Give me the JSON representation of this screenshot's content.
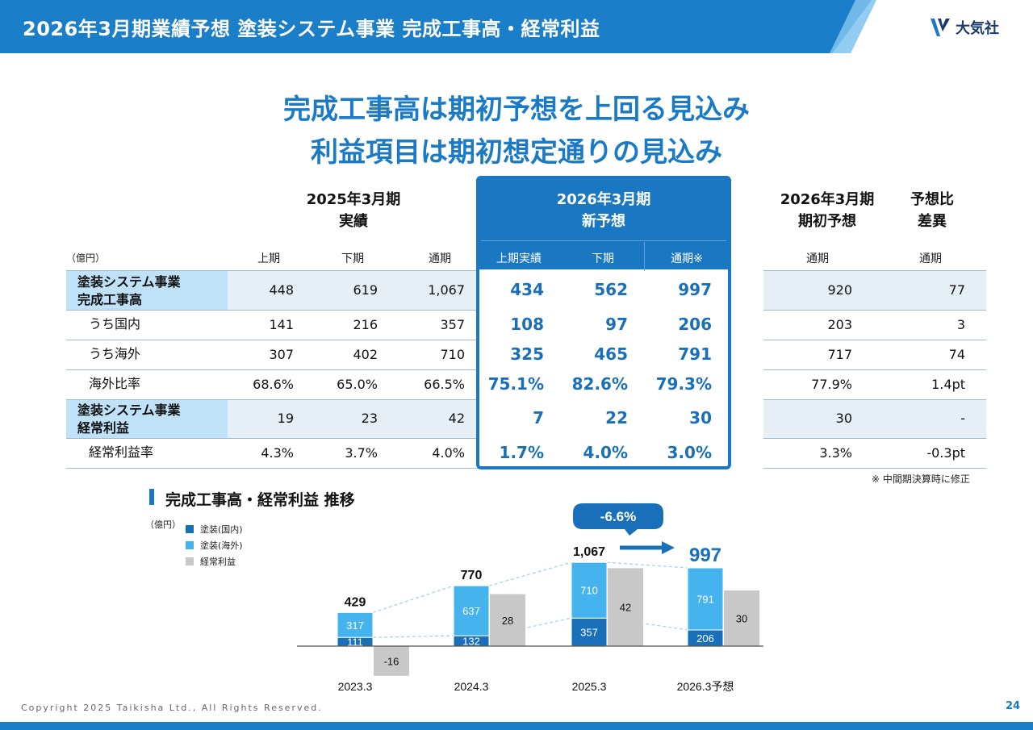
{
  "header": {
    "title": "2026年3月期業績予想 塗装システム事業 完成工事高・経常利益",
    "logo_text": "大気社"
  },
  "headline": {
    "line1": "完成工事高は期初予想を上回る見込み",
    "line2": "利益項目は期初想定通りの見込み"
  },
  "table": {
    "unit": "（億円）",
    "groups": {
      "fy2025": {
        "line1": "2025年3月期",
        "line2": "実績"
      },
      "fy2026_new": {
        "line1": "2026年3月期",
        "line2": "新予想"
      },
      "fy2026_initial": {
        "line1": "2026年3月期",
        "line2": "期初予想"
      },
      "diff": {
        "line1": "予想比",
        "line2": "差異"
      }
    },
    "subheaders": {
      "h1": "上期",
      "h2": "下期",
      "h3": "通期",
      "n1": "上期実績",
      "n2": "下期",
      "n3": "通期※",
      "i1": "通期",
      "d1": "通期"
    },
    "rows": [
      {
        "label1": "塗装システム事業",
        "label2": "完成工事高",
        "values": [
          "448",
          "619",
          "1,067",
          "434",
          "562",
          "997",
          "920",
          "77"
        ]
      },
      {
        "label1": "うち国内",
        "label2": "",
        "values": [
          "141",
          "216",
          "357",
          "108",
          "97",
          "206",
          "203",
          "3"
        ]
      },
      {
        "label1": "うち海外",
        "label2": "",
        "values": [
          "307",
          "402",
          "710",
          "325",
          "465",
          "791",
          "717",
          "74"
        ]
      },
      {
        "label1": "海外比率",
        "label2": "",
        "values": [
          "68.6%",
          "65.0%",
          "66.5%",
          "75.1%",
          "82.6%",
          "79.3%",
          "77.9%",
          "1.4pt"
        ]
      },
      {
        "label1": "塗装システム事業",
        "label2": "経常利益",
        "values": [
          "19",
          "23",
          "42",
          "7",
          "22",
          "30",
          "30",
          "-"
        ]
      },
      {
        "label1": "経常利益率",
        "label2": "",
        "values": [
          "4.3%",
          "3.7%",
          "4.0%",
          "1.7%",
          "4.0%",
          "3.0%",
          "3.3%",
          "-0.3pt"
        ]
      }
    ],
    "note": "※ 中間期決算時に修正"
  },
  "chart_title": "完成工事高・経常利益 推移",
  "chart_data": {
    "type": "bar",
    "title": "完成工事高・経常利益 推移",
    "unit": "（億円）",
    "categories": [
      "2023.3",
      "2024.3",
      "2025.3",
      "2026.3予想"
    ],
    "series": [
      {
        "name": "塗装(国内)",
        "values": [
          111,
          132,
          357,
          206
        ],
        "color": "#1a6fb9",
        "stack": "sales"
      },
      {
        "name": "塗装(海外)",
        "values": [
          317,
          637,
          710,
          791
        ],
        "color": "#45b3ee",
        "stack": "sales"
      },
      {
        "name": "経常利益",
        "values": [
          -16,
          28,
          42,
          30
        ],
        "color": "#c8c8c8",
        "stack": "profit"
      }
    ],
    "totals": [
      "429",
      "770",
      "1,067",
      "997"
    ],
    "callout": "-6.6%"
  },
  "footer": {
    "copyright": "Copyright 2025 Taikisha Ltd., All Rights Reserved.",
    "page": "24"
  }
}
